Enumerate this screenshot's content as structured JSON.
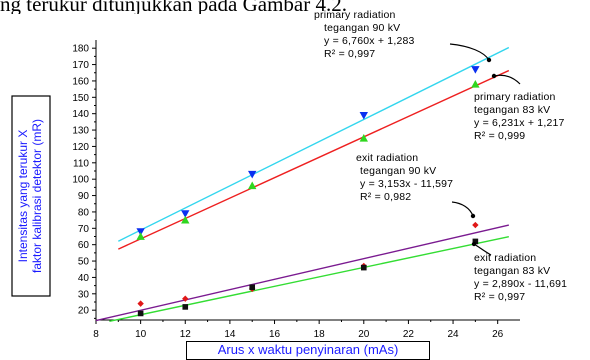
{
  "caption_fragment": "ng terukur ditunjukkan pada Gambar 4.2.",
  "chart_data": {
    "type": "scatter",
    "xlabel": "Arus x waktu penyinaran (mAs)",
    "ylabel": [
      "Intensitas yang terukur X",
      "faktor kalibrasi detektor (mR)"
    ],
    "xlim": [
      8,
      27
    ],
    "ylim": [
      14,
      185
    ],
    "xticks": [
      8,
      10,
      12,
      14,
      16,
      18,
      20,
      22,
      24,
      26
    ],
    "yticks": [
      20,
      30,
      40,
      50,
      60,
      70,
      80,
      90,
      100,
      110,
      120,
      130,
      140,
      150,
      160,
      170,
      180
    ],
    "grid": false,
    "series": [
      {
        "name": "primary radiation tegangan 90 kV",
        "marker": "triangle-down",
        "color": "#0a2ff0",
        "line_color": "#33d6ee",
        "x": [
          10,
          12,
          15,
          20,
          25
        ],
        "y": [
          68,
          79,
          103,
          139,
          167
        ],
        "fit": {
          "slope": 6.76,
          "intercept": 1.283
        },
        "fit_range": [
          9,
          26.5
        ],
        "annotation": [
          "primary radiation",
          "tegangan 90 kV",
          "y = 6,760x + 1,283",
          "R² = 0,997"
        ]
      },
      {
        "name": "primary radiation tegangan 83 kV",
        "marker": "triangle-up",
        "color": "#2fd61f",
        "line_color": "#ee2020",
        "x": [
          10,
          12,
          15,
          20,
          25
        ],
        "y": [
          65,
          75,
          96,
          125,
          158
        ],
        "fit": {
          "slope": 6.231,
          "intercept": 1.217
        },
        "fit_range": [
          9,
          26.5
        ],
        "annotation": [
          "primary radiation",
          "tegangan 83 kV",
          "y = 6,231x + 1,217",
          "R² = 0,999"
        ]
      },
      {
        "name": "exit radiation tegangan 90 kV",
        "marker": "diamond",
        "color": "#e01818",
        "line_color": "#7a1a90",
        "x": [
          10,
          12,
          15,
          20,
          25
        ],
        "y": [
          24,
          27,
          33,
          47,
          72
        ],
        "fit": {
          "slope": 3.153,
          "intercept": -11.597
        },
        "fit_range": [
          8,
          26.5
        ],
        "annotation": [
          "exit radiation",
          "tegangan 90 kV",
          "y = 3,153x - 11,597",
          "R² = 0,982"
        ]
      },
      {
        "name": "exit radiation tegangan 83 kV",
        "marker": "square",
        "color": "#111111",
        "line_color": "#33dd33",
        "x": [
          10,
          12,
          15,
          20,
          25
        ],
        "y": [
          18,
          22,
          34,
          46,
          62
        ],
        "fit": {
          "slope": 2.89,
          "intercept": -11.691
        },
        "fit_range": [
          8.6,
          26.5
        ],
        "annotation": [
          "exit radiation",
          "tegangan 83 kV",
          "y = 2,890x - 11,691",
          "R² = 0,997"
        ]
      }
    ]
  }
}
